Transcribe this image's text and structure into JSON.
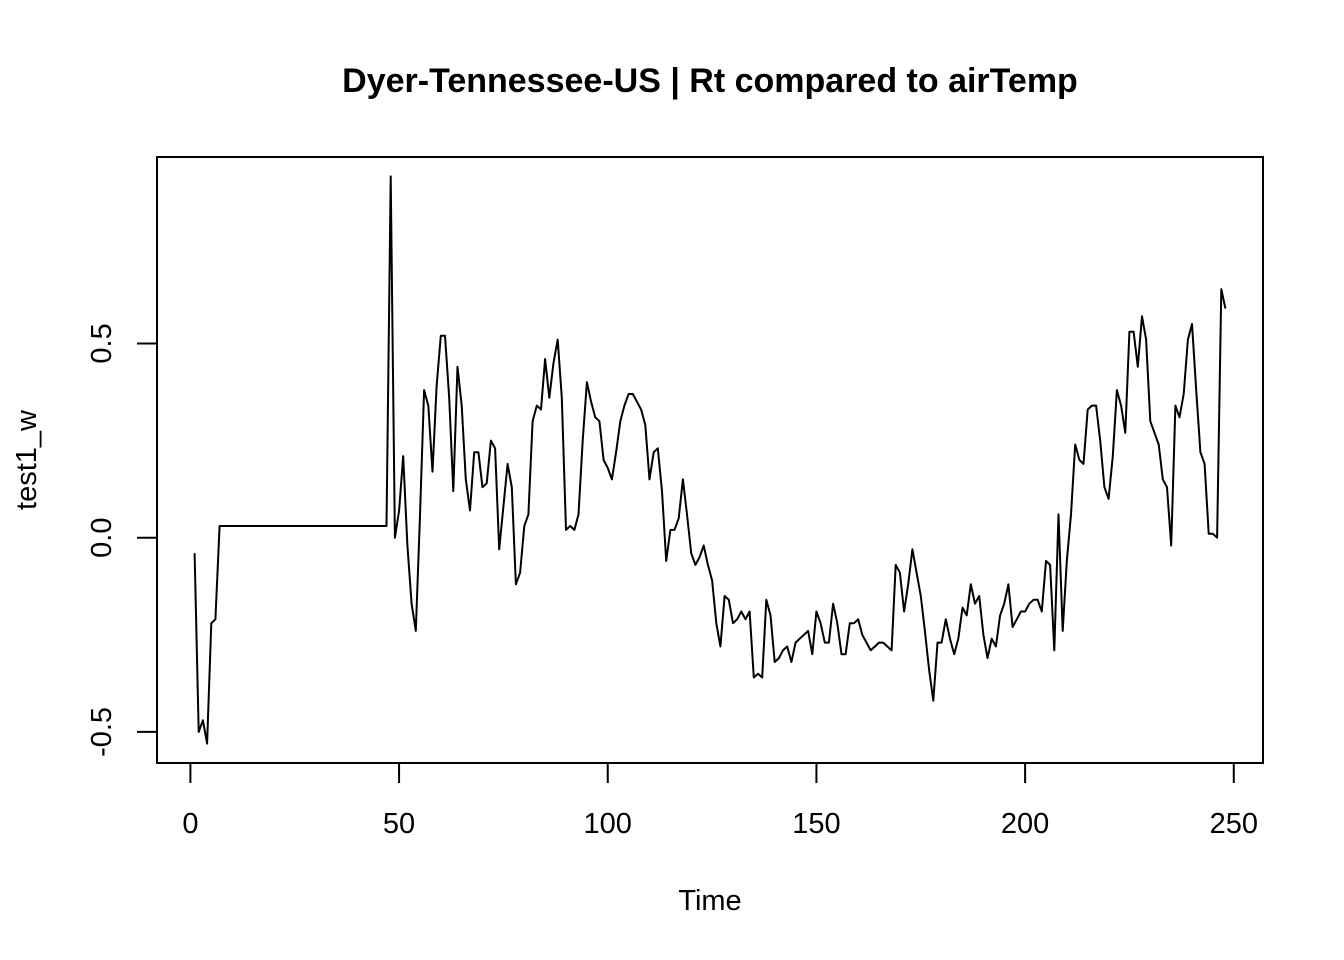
{
  "chart_data": {
    "type": "line",
    "title": "Dyer-Tennessee-US | Rt compared to airTemp",
    "xlabel": "Time",
    "ylabel": "test1_w",
    "xlim": [
      -8,
      257
    ],
    "ylim": [
      -0.58,
      0.98
    ],
    "xticks": [
      "0",
      "50",
      "100",
      "150",
      "200",
      "250"
    ],
    "yticks": [
      "-0.5",
      "0.0",
      "0.5"
    ],
    "grid": false,
    "legend": "none",
    "color": "#000000",
    "series": [
      {
        "x": [
          1,
          2,
          3,
          4,
          5,
          6,
          7,
          8,
          9,
          10,
          11,
          12,
          13,
          14,
          15,
          16,
          17,
          18,
          19,
          20,
          21,
          22,
          23,
          24,
          25,
          26,
          27,
          28,
          29,
          30,
          31,
          32,
          33,
          34,
          35,
          36,
          37,
          38,
          39,
          40,
          41,
          42,
          43,
          44,
          45,
          46,
          47,
          48,
          49,
          50,
          51,
          52,
          53,
          54,
          55,
          56,
          57,
          58,
          59,
          60,
          61,
          62,
          63,
          64,
          65,
          66,
          67,
          68,
          69,
          70,
          71,
          72,
          73,
          74,
          75,
          76,
          77,
          78,
          79,
          80,
          81,
          82,
          83,
          84,
          85,
          86,
          87,
          88,
          89,
          90,
          91,
          92,
          93,
          94,
          95,
          96,
          97,
          98,
          99,
          100,
          101,
          102,
          103,
          104,
          105,
          106,
          107,
          108,
          109,
          110,
          111,
          112,
          113,
          114,
          115,
          116,
          117,
          118,
          119,
          120,
          121,
          122,
          123,
          124,
          125,
          126,
          127,
          128,
          129,
          130,
          131,
          132,
          133,
          134,
          135,
          136,
          137,
          138,
          139,
          140,
          141,
          142,
          143,
          144,
          145,
          146,
          147,
          148,
          149,
          150,
          151,
          152,
          153,
          154,
          155,
          156,
          157,
          158,
          159,
          160,
          161,
          162,
          163,
          164,
          165,
          166,
          167,
          168,
          169,
          170,
          171,
          172,
          173,
          174,
          175,
          176,
          177,
          178,
          179,
          180,
          181,
          182,
          183,
          184,
          185,
          186,
          187,
          188,
          189,
          190,
          191,
          192,
          193,
          194,
          195,
          196,
          197,
          198,
          199,
          200,
          201,
          202,
          203,
          204,
          205,
          206,
          207,
          208,
          209,
          210,
          211,
          212,
          213,
          214,
          215,
          216,
          217,
          218,
          219,
          220,
          221,
          222,
          223,
          224,
          225,
          226,
          227,
          228,
          229,
          230,
          231,
          232,
          233,
          234,
          235,
          236,
          237,
          238,
          239,
          240,
          241,
          242,
          243,
          244,
          245,
          246,
          247,
          248
        ],
        "y": [
          -0.04,
          -0.5,
          -0.47,
          -0.53,
          -0.22,
          -0.21,
          0.03,
          0.03,
          0.03,
          0.03,
          0.03,
          0.03,
          0.03,
          0.03,
          0.03,
          0.03,
          0.03,
          0.03,
          0.03,
          0.03,
          0.03,
          0.03,
          0.03,
          0.03,
          0.03,
          0.03,
          0.03,
          0.03,
          0.03,
          0.03,
          0.03,
          0.03,
          0.03,
          0.03,
          0.03,
          0.03,
          0.03,
          0.03,
          0.03,
          0.03,
          0.03,
          0.03,
          0.03,
          0.03,
          0.03,
          0.03,
          0.03,
          0.93,
          0.0,
          0.07,
          0.21,
          -0.02,
          -0.17,
          -0.24,
          0.05,
          0.38,
          0.34,
          0.17,
          0.39,
          0.52,
          0.52,
          0.36,
          0.12,
          0.44,
          0.34,
          0.15,
          0.07,
          0.22,
          0.22,
          0.13,
          0.14,
          0.25,
          0.23,
          -0.03,
          0.08,
          0.19,
          0.13,
          -0.12,
          -0.09,
          0.03,
          0.06,
          0.3,
          0.34,
          0.33,
          0.46,
          0.36,
          0.45,
          0.51,
          0.36,
          0.02,
          0.03,
          0.02,
          0.06,
          0.25,
          0.4,
          0.35,
          0.31,
          0.3,
          0.2,
          0.18,
          0.15,
          0.22,
          0.3,
          0.34,
          0.37,
          0.37,
          0.35,
          0.33,
          0.29,
          0.15,
          0.22,
          0.23,
          0.12,
          -0.06,
          0.02,
          0.02,
          0.05,
          0.15,
          0.06,
          -0.04,
          -0.07,
          -0.05,
          -0.02,
          -0.07,
          -0.11,
          -0.22,
          -0.28,
          -0.15,
          -0.16,
          -0.22,
          -0.21,
          -0.19,
          -0.21,
          -0.19,
          -0.36,
          -0.35,
          -0.36,
          -0.16,
          -0.2,
          -0.32,
          -0.31,
          -0.29,
          -0.28,
          -0.32,
          -0.27,
          -0.26,
          -0.25,
          -0.24,
          -0.3,
          -0.19,
          -0.22,
          -0.27,
          -0.27,
          -0.17,
          -0.22,
          -0.3,
          -0.3,
          -0.22,
          -0.22,
          -0.21,
          -0.25,
          -0.27,
          -0.29,
          -0.28,
          -0.27,
          -0.27,
          -0.28,
          -0.29,
          -0.07,
          -0.09,
          -0.19,
          -0.12,
          -0.03,
          -0.09,
          -0.15,
          -0.24,
          -0.34,
          -0.42,
          -0.27,
          -0.27,
          -0.21,
          -0.26,
          -0.3,
          -0.26,
          -0.18,
          -0.2,
          -0.12,
          -0.17,
          -0.15,
          -0.25,
          -0.31,
          -0.26,
          -0.28,
          -0.2,
          -0.17,
          -0.12,
          -0.23,
          -0.21,
          -0.19,
          -0.19,
          -0.17,
          -0.16,
          -0.16,
          -0.19,
          -0.06,
          -0.07,
          -0.29,
          0.06,
          -0.24,
          -0.06,
          0.06,
          0.24,
          0.2,
          0.19,
          0.33,
          0.34,
          0.34,
          0.25,
          0.13,
          0.1,
          0.21,
          0.38,
          0.34,
          0.27,
          0.53,
          0.53,
          0.44,
          0.57,
          0.51,
          0.3,
          0.27,
          0.24,
          0.15,
          0.13,
          -0.02,
          0.34,
          0.31,
          0.37,
          0.51,
          0.55,
          0.38,
          0.22,
          0.19,
          0.01,
          0.01,
          0.0,
          0.64,
          0.59
        ]
      }
    ]
  }
}
